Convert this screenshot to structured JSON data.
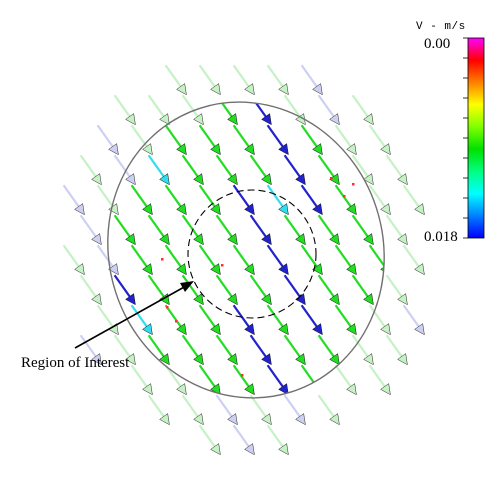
{
  "colorbar": {
    "title": "V - m/s",
    "top_label": "0.00",
    "bottom_label": "0.018",
    "stops": [
      "#ff00ff",
      "#ff0000",
      "#ff8000",
      "#ffff00",
      "#80ff00",
      "#00e000",
      "#00ff80",
      "#00ffff",
      "#0080ff",
      "#0000ff"
    ]
  },
  "annotation": {
    "label": "Region of Interest"
  },
  "colors": {
    "domain_outline": "#707070",
    "region_outline": "#000000",
    "arrow_green": "#22dd22",
    "arrow_blue": "#2222cc",
    "arrow_cyan": "#33ddee",
    "arrow_red": "#ff3030",
    "arrow_faded_green": "#bff0bf",
    "arrow_faded_blue": "#c8ccf0"
  },
  "flow": {
    "direction": "down-right"
  }
}
